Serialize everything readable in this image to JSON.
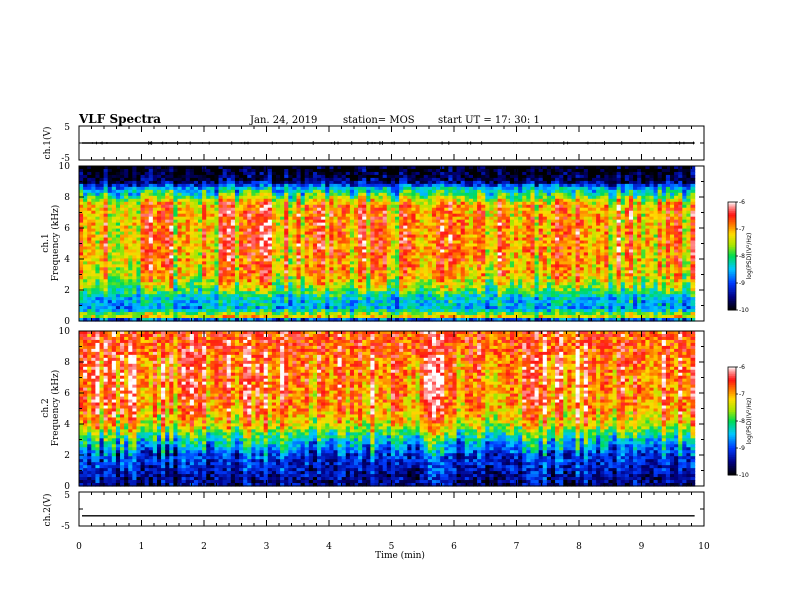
{
  "header": {
    "title": "VLF Spectra",
    "date": "Jan. 24, 2019",
    "station": "station= MOS",
    "start": "start  UT  =   17: 30: 1"
  },
  "chart_data": {
    "type": "heatmap",
    "xlabel": "Time  (min)",
    "xlim": [
      0,
      10
    ],
    "x_ticks": [
      "0",
      "1",
      "2",
      "3",
      "4",
      "5",
      "6",
      "7",
      "8",
      "9",
      "10"
    ],
    "data_end_min": 9.85,
    "panels": [
      {
        "kind": "waveform",
        "ylabel": "ch.1(V)",
        "ylim": [
          -5,
          5
        ],
        "y_ticks": [
          "5",
          "-5"
        ],
        "level": 0
      },
      {
        "kind": "spectrogram",
        "ylabel_line1": "ch.1",
        "ylabel_line2": "Frequency  (kHz)",
        "ylim": [
          0,
          10
        ],
        "y_ticks": [
          "0",
          "2",
          "4",
          "6",
          "8",
          "10"
        ],
        "colorbar": {
          "label": "log(PSD)(V²/Hz)",
          "ticks": [
            "-6",
            "-7",
            "-8",
            "-9",
            "-10"
          ],
          "range": [
            -10,
            -6
          ]
        },
        "profile": [
          {
            "f_khz": 0,
            "log_psd": -9.6
          },
          {
            "f_khz": 0.3,
            "log_psd": -7.2
          },
          {
            "f_khz": 0.8,
            "log_psd": -8.6
          },
          {
            "f_khz": 1.5,
            "log_psd": -8.4
          },
          {
            "f_khz": 2.0,
            "log_psd": -7.8
          },
          {
            "f_khz": 3.0,
            "log_psd": -7.1
          },
          {
            "f_khz": 5.0,
            "log_psd": -6.9
          },
          {
            "f_khz": 7.5,
            "log_psd": -7.0
          },
          {
            "f_khz": 8.0,
            "log_psd": -7.8
          },
          {
            "f_khz": 8.6,
            "log_psd": -8.6
          },
          {
            "f_khz": 9.0,
            "log_psd": -9.7
          },
          {
            "f_khz": 10.0,
            "log_psd": -10.0
          }
        ]
      },
      {
        "kind": "spectrogram",
        "ylabel_line1": "ch.2",
        "ylabel_line2": "Frequency  (kHz)",
        "ylim": [
          0,
          10
        ],
        "y_ticks": [
          "0",
          "2",
          "4",
          "6",
          "8",
          "10"
        ],
        "colorbar": {
          "label": "log(PSD)(V²/Hz)",
          "ticks": [
            "-6",
            "-7",
            "-8",
            "-9",
            "-10"
          ],
          "range": [
            -10,
            -6
          ]
        },
        "profile": [
          {
            "f_khz": 0,
            "log_psd": -9.5
          },
          {
            "f_khz": 0.5,
            "log_psd": -9.4
          },
          {
            "f_khz": 2.0,
            "log_psd": -9.0
          },
          {
            "f_khz": 3.0,
            "log_psd": -8.2
          },
          {
            "f_khz": 4.0,
            "log_psd": -7.2
          },
          {
            "f_khz": 5.0,
            "log_psd": -6.8
          },
          {
            "f_khz": 8.0,
            "log_psd": -6.6
          },
          {
            "f_khz": 10.0,
            "log_psd": -6.6
          }
        ]
      },
      {
        "kind": "waveform",
        "ylabel": "ch.2(V)",
        "ylim": [
          -5,
          5
        ],
        "y_ticks": [
          "5",
          "-5"
        ],
        "level": -2
      }
    ]
  }
}
